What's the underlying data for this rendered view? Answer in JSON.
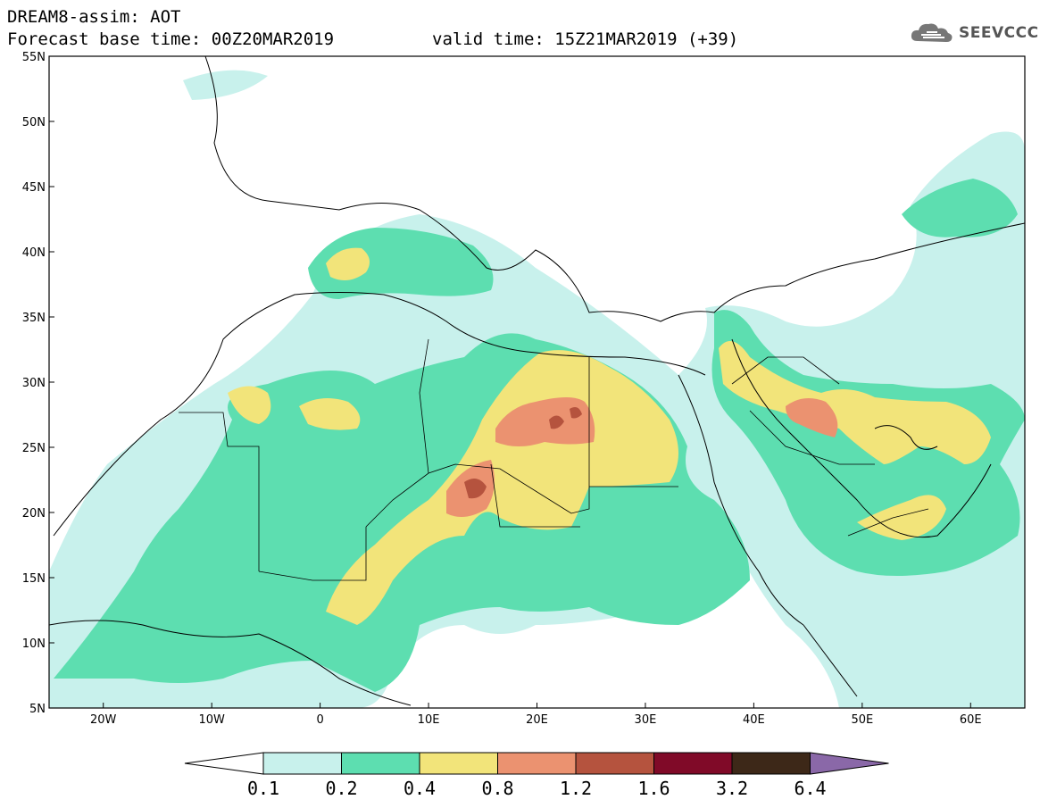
{
  "header": {
    "model_title": "DREAM8-assim: AOT",
    "forecast_base": "Forecast base time: 00Z20MAR2019",
    "valid_time": "valid time: 15Z21MAR2019 (+39)",
    "logo_text": "SEEVCCC"
  },
  "axes": {
    "lat_labels": [
      "55N",
      "50N",
      "45N",
      "40N",
      "35N",
      "30N",
      "25N",
      "20N",
      "15N",
      "10N",
      "5N"
    ],
    "lon_labels": [
      "20W",
      "10W",
      "0",
      "10E",
      "20E",
      "30E",
      "40E",
      "50E",
      "60E"
    ]
  },
  "colorbar": {
    "labels": [
      "0.1",
      "0.2",
      "0.4",
      "0.8",
      "1.2",
      "1.6",
      "3.2",
      "6.4"
    ],
    "colors": [
      "#c8f1ec",
      "#5ddeb0",
      "#f2e47a",
      "#eb9270",
      "#b5533e",
      "#800a28",
      "#3d2818",
      "#8a68a8"
    ],
    "under_color": "#ffffff"
  },
  "map": {
    "extent": {
      "lon": [
        -25,
        65
      ],
      "lat": [
        5,
        55
      ]
    }
  }
}
